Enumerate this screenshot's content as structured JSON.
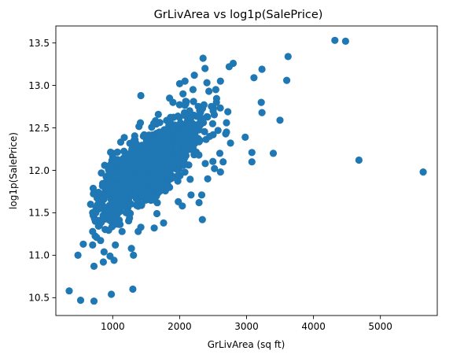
{
  "chart_data": {
    "type": "scatter",
    "title": "GrLivArea vs log1p(SalePrice)",
    "xlabel": "GrLivArea (sq ft)",
    "ylabel": "log1p(SalePrice)",
    "xlim": [
      150,
      5850
    ],
    "ylim": [
      10.29,
      13.7
    ],
    "xticks": [
      1000,
      2000,
      3000,
      4000,
      5000
    ],
    "yticks": [
      10.5,
      11.0,
      11.5,
      12.0,
      12.5,
      13.0,
      13.5
    ],
    "grid": false,
    "marker_color": "#1f77b4",
    "cluster": {
      "x_mean": 1500,
      "x_sd": 380,
      "x_min": 700,
      "x_max": 2800,
      "slope": 0.000565,
      "intercept": 11.17,
      "noise_sd": 0.19,
      "count": 1360
    },
    "points": [
      {
        "x": 4320,
        "y": 13.53
      },
      {
        "x": 4480,
        "y": 13.52
      },
      {
        "x": 4680,
        "y": 12.12
      },
      {
        "x": 5640,
        "y": 11.98
      },
      {
        "x": 3620,
        "y": 13.34
      },
      {
        "x": 3600,
        "y": 13.06
      },
      {
        "x": 3230,
        "y": 13.19
      },
      {
        "x": 3110,
        "y": 13.09
      },
      {
        "x": 3400,
        "y": 12.2
      },
      {
        "x": 3500,
        "y": 12.59
      },
      {
        "x": 3220,
        "y": 12.8
      },
      {
        "x": 3230,
        "y": 12.68
      },
      {
        "x": 3080,
        "y": 12.21
      },
      {
        "x": 3080,
        "y": 12.1
      },
      {
        "x": 2980,
        "y": 12.39
      },
      {
        "x": 2760,
        "y": 12.32
      },
      {
        "x": 2700,
        "y": 12.56
      },
      {
        "x": 2610,
        "y": 13.05
      },
      {
        "x": 2540,
        "y": 12.95
      },
      {
        "x": 2800,
        "y": 13.26
      },
      {
        "x": 2740,
        "y": 13.22
      },
      {
        "x": 2350,
        "y": 13.32
      },
      {
        "x": 2380,
        "y": 13.2
      },
      {
        "x": 2220,
        "y": 13.12
      },
      {
        "x": 2000,
        "y": 13.02
      },
      {
        "x": 2080,
        "y": 13.05
      },
      {
        "x": 1420,
        "y": 12.88
      },
      {
        "x": 2600,
        "y": 12.2
      },
      {
        "x": 2650,
        "y": 12.1
      },
      {
        "x": 2610,
        "y": 11.98
      },
      {
        "x": 2520,
        "y": 12.02
      },
      {
        "x": 2420,
        "y": 11.9
      },
      {
        "x": 2330,
        "y": 11.71
      },
      {
        "x": 2290,
        "y": 11.62
      },
      {
        "x": 2170,
        "y": 11.71
      },
      {
        "x": 2340,
        "y": 11.42
      },
      {
        "x": 2040,
        "y": 11.58
      },
      {
        "x": 1980,
        "y": 11.63
      },
      {
        "x": 1660,
        "y": 11.49
      },
      {
        "x": 1760,
        "y": 11.38
      },
      {
        "x": 1620,
        "y": 11.32
      },
      {
        "x": 1420,
        "y": 11.33
      },
      {
        "x": 1380,
        "y": 11.28
      },
      {
        "x": 1140,
        "y": 11.28
      },
      {
        "x": 1280,
        "y": 11.08
      },
      {
        "x": 1040,
        "y": 11.12
      },
      {
        "x": 1020,
        "y": 10.94
      },
      {
        "x": 960,
        "y": 10.99
      },
      {
        "x": 870,
        "y": 11.04
      },
      {
        "x": 860,
        "y": 10.92
      },
      {
        "x": 720,
        "y": 10.87
      },
      {
        "x": 700,
        "y": 11.12
      },
      {
        "x": 760,
        "y": 11.21
      },
      {
        "x": 700,
        "y": 11.28
      },
      {
        "x": 560,
        "y": 11.13
      },
      {
        "x": 480,
        "y": 11.0
      },
      {
        "x": 1310,
        "y": 11.0
      },
      {
        "x": 1040,
        "y": 11.51
      },
      {
        "x": 1020,
        "y": 11.45
      },
      {
        "x": 1300,
        "y": 10.6
      },
      {
        "x": 980,
        "y": 10.54
      },
      {
        "x": 720,
        "y": 10.46
      },
      {
        "x": 520,
        "y": 10.47
      },
      {
        "x": 350,
        "y": 10.58
      },
      {
        "x": 670,
        "y": 11.6
      },
      {
        "x": 700,
        "y": 11.5
      },
      {
        "x": 740,
        "y": 11.4
      },
      {
        "x": 800,
        "y": 11.35
      },
      {
        "x": 820,
        "y": 11.55
      },
      {
        "x": 900,
        "y": 11.45
      },
      {
        "x": 1200,
        "y": 11.5
      },
      {
        "x": 1250,
        "y": 11.6
      },
      {
        "x": 1900,
        "y": 12.8
      },
      {
        "x": 1850,
        "y": 12.85
      },
      {
        "x": 2050,
        "y": 12.9
      },
      {
        "x": 2150,
        "y": 12.7
      },
      {
        "x": 2200,
        "y": 12.95
      },
      {
        "x": 2500,
        "y": 12.7
      },
      {
        "x": 2450,
        "y": 12.4
      },
      {
        "x": 2700,
        "y": 12.45
      },
      {
        "x": 2550,
        "y": 12.8
      }
    ]
  }
}
